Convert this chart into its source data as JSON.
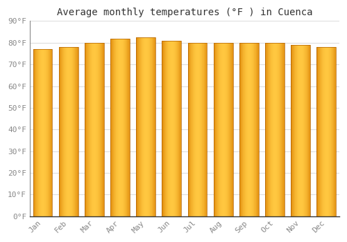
{
  "title": "Average monthly temperatures (°F ) in Cuenca",
  "categories": [
    "Jan",
    "Feb",
    "Mar",
    "Apr",
    "May",
    "Jun",
    "Jul",
    "Aug",
    "Sep",
    "Oct",
    "Nov",
    "Dec"
  ],
  "values": [
    77,
    78,
    80,
    82,
    82.5,
    81,
    80,
    80,
    80,
    80,
    79,
    78
  ],
  "bar_color_center": "#FFA500",
  "bar_color_edge": "#F08000",
  "bar_edge_color": "#C87000",
  "background_color": "#FFFFFF",
  "plot_bg_color": "#FFFFFF",
  "grid_color": "#DDDDDD",
  "ylim": [
    0,
    90
  ],
  "yticks": [
    0,
    10,
    20,
    30,
    40,
    50,
    60,
    70,
    80,
    90
  ],
  "ytick_labels": [
    "0°F",
    "10°F",
    "20°F",
    "30°F",
    "40°F",
    "50°F",
    "60°F",
    "70°F",
    "80°F",
    "90°F"
  ],
  "title_fontsize": 10,
  "tick_fontsize": 8,
  "title_font": "monospace",
  "tick_font": "monospace",
  "tick_color": "#888888",
  "bar_width": 0.75
}
